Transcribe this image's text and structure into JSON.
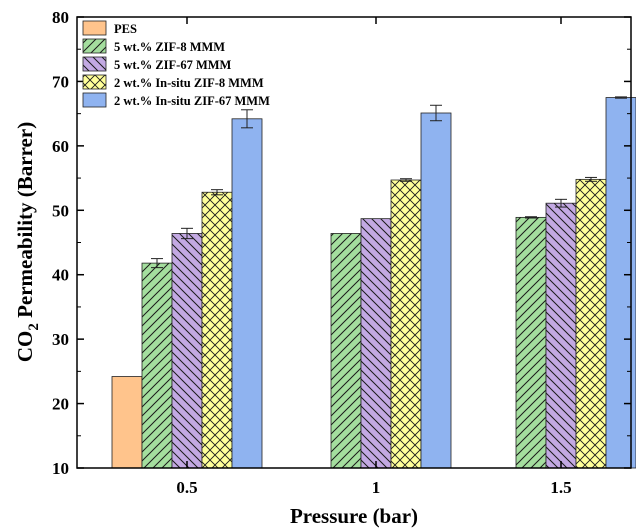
{
  "chart_data": {
    "type": "bar",
    "categories": [
      "0.5",
      "1",
      "1.5"
    ],
    "xlabel": "Pressure (bar)",
    "ylabel": "CO2 Permeability (Barrer)",
    "ylabel_main": "CO",
    "ylabel_sub": "2",
    "ylabel_rest": " Permeability (Barrer)",
    "ylim": [
      10,
      80
    ],
    "yticks": [
      "10",
      "20",
      "30",
      "40",
      "50",
      "60",
      "70",
      "80"
    ],
    "legend_position": "top-left",
    "series": [
      {
        "name": "PES",
        "values": [
          24.2,
          null,
          null
        ],
        "errors": [
          0,
          0,
          0
        ],
        "color": "#FFC48C",
        "pattern": "none"
      },
      {
        "name": "5 wt.% ZIF-8 MMM",
        "values": [
          41.8,
          46.4,
          48.9
        ],
        "errors": [
          0.7,
          0,
          0.1
        ],
        "color": "#A4DE9E",
        "pattern": "forward"
      },
      {
        "name": "5 wt.% ZIF-67 MMM",
        "values": [
          46.4,
          48.7,
          51.1
        ],
        "errors": [
          0.8,
          0,
          0.6
        ],
        "color": "#C3A9E3",
        "pattern": "back"
      },
      {
        "name": "2 wt.% In-situ ZIF-8 MMM",
        "values": [
          52.8,
          54.7,
          54.8
        ],
        "errors": [
          0.4,
          0.2,
          0.3
        ],
        "color": "#FFFF99",
        "pattern": "cross"
      },
      {
        "name": "2 wt.% In-situ ZIF-67 MMM",
        "values": [
          64.2,
          65.1,
          67.5
        ],
        "errors": [
          1.4,
          1.2,
          0.1
        ],
        "color": "#8FB3F0",
        "pattern": "none"
      }
    ]
  }
}
